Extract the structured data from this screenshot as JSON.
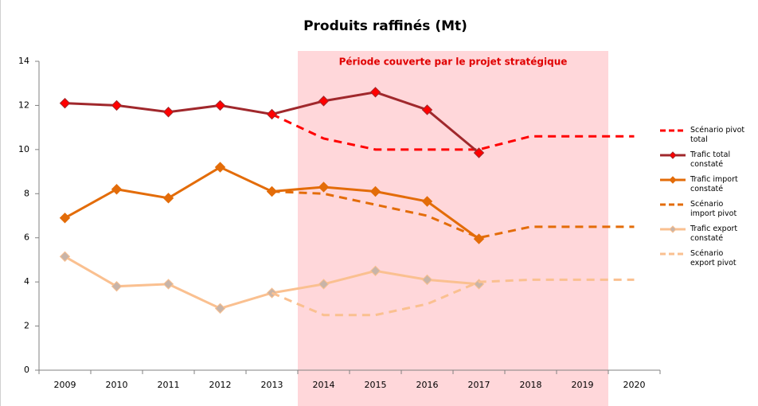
{
  "chart_data": {
    "type": "line",
    "title": "Produits raffinés (Mt)",
    "annotation": "Période couverte par le projet stratégique",
    "categories": [
      "2009",
      "2010",
      "2011",
      "2012",
      "2013",
      "2014",
      "2015",
      "2016",
      "2017",
      "2018",
      "2019",
      "2020"
    ],
    "ylim": [
      0,
      14
    ],
    "yticks": [
      0,
      2,
      4,
      6,
      8,
      10,
      12,
      14
    ],
    "grid": false,
    "legend": "right",
    "series": [
      {
        "name": "Scénario pivot total",
        "color": "#ff0000",
        "dashed": true,
        "values": [
          null,
          null,
          null,
          null,
          11.6,
          10.5,
          10.0,
          10.0,
          10.0,
          10.6,
          10.6,
          10.6
        ]
      },
      {
        "name": "Trafic total constaté",
        "color": "#a0282c",
        "marker_color": "#ff0000",
        "values": [
          12.1,
          12.0,
          11.7,
          12.0,
          11.6,
          12.2,
          12.6,
          11.8,
          9.85,
          null,
          null,
          null
        ]
      },
      {
        "name": "Trafic import constaté",
        "color": "#e36c09",
        "marker_color": "#e36c09",
        "values": [
          6.9,
          8.2,
          7.8,
          9.2,
          8.1,
          8.3,
          8.1,
          7.65,
          5.95,
          null,
          null,
          null
        ]
      },
      {
        "name": "Scénario import pivot",
        "color": "#e36c09",
        "dashed": true,
        "values": [
          null,
          null,
          null,
          null,
          8.1,
          8.0,
          7.5,
          7.0,
          6.0,
          6.5,
          6.5,
          6.5
        ]
      },
      {
        "name": "Trafic export constaté",
        "color": "#fac090",
        "marker_color": "#c8b4a8",
        "values": [
          5.15,
          3.8,
          3.9,
          2.8,
          3.5,
          3.9,
          4.5,
          4.1,
          3.9,
          null,
          null,
          null
        ]
      },
      {
        "name": "Scénario export pivot",
        "color": "#fac090",
        "dashed": true,
        "values": [
          null,
          null,
          null,
          null,
          3.5,
          2.5,
          2.5,
          3.0,
          4.0,
          4.1,
          4.1,
          4.1
        ]
      }
    ]
  }
}
